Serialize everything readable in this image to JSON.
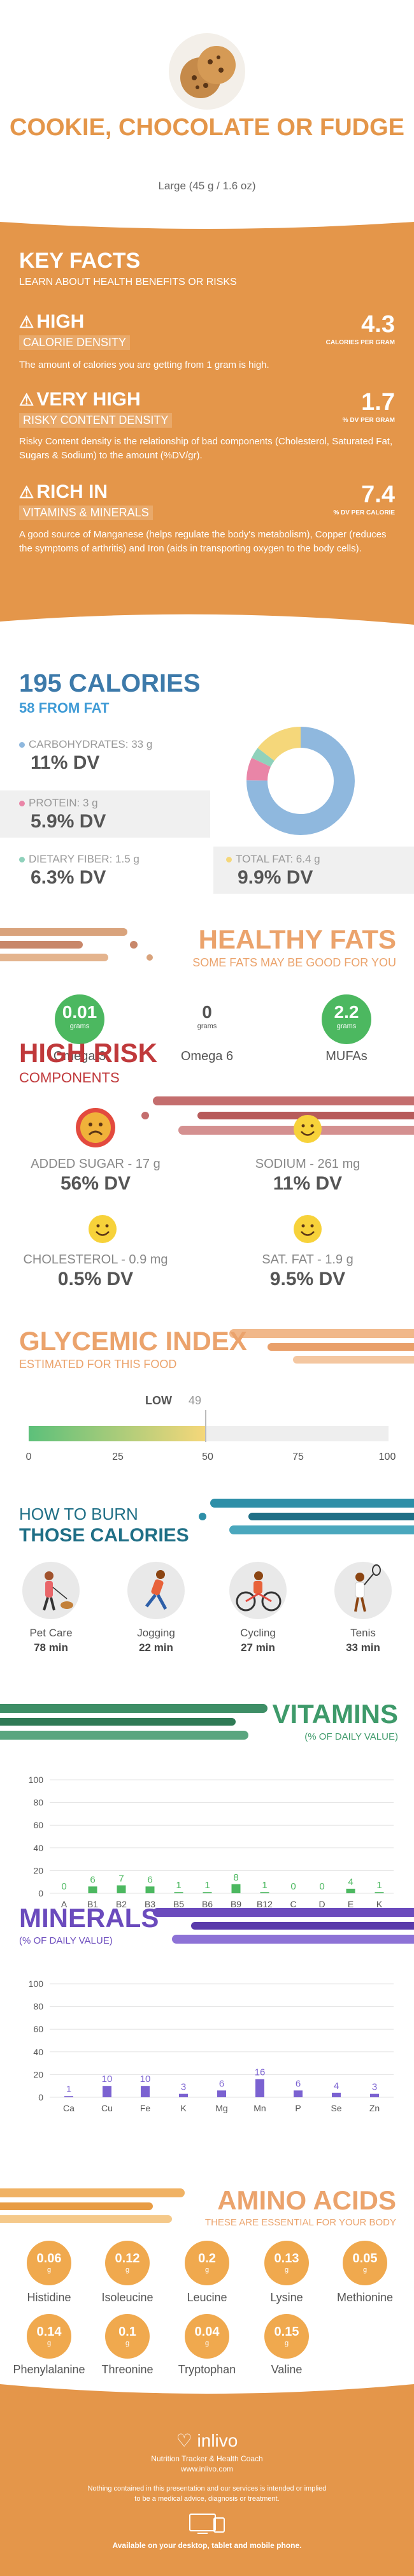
{
  "header": {
    "title": "COOKIE, CHOCOLATE OR FUDGE",
    "serving": "Large (45 g / 1.6 oz)"
  },
  "key_facts": {
    "title": "KEY FACTS",
    "subtitle": "LEARN ABOUT HEALTH BENEFITS OR RISKS",
    "calorie": {
      "level": "HIGH",
      "label": "CALORIE DENSITY",
      "value": "4.3",
      "unit": "CALORIES PER GRAM",
      "desc": "The amount of calories you are getting from 1 gram is high."
    },
    "risky": {
      "level": "VERY HIGH",
      "label": "RISKY CONTENT DENSITY",
      "value": "1.7",
      "unit": "% DV PER GRAM",
      "desc": "Risky Content density is the relationship of bad components (Cholesterol, Saturated Fat, Sugars & Sodium) to the amount (%DV/gr)."
    },
    "vitamins": {
      "level": "RICH IN",
      "label": "VITAMINS & MINERALS",
      "value": "7.4",
      "unit": "% DV PER CALORIE",
      "desc": "A good source of Manganese (helps regulate the body's metabolism), Copper (reduces the symptoms of arthritis) and Iron (aids in transporting oxygen to the body cells)."
    }
  },
  "calories": {
    "title": "195 CALORIES",
    "from_fat": "58 FROM FAT",
    "carbs": {
      "label": "CARBOHYDRATES: 33 g",
      "dv": "11% DV",
      "color": "#8fb8de"
    },
    "protein": {
      "label": "PROTEIN: 3 g",
      "dv": "5.9% DV",
      "color": "#e985a7"
    },
    "fiber": {
      "label": "DIETARY FIBER: 1.5 g",
      "dv": "6.3% DV",
      "color": "#8fd1bb"
    },
    "fat": {
      "label": "TOTAL FAT: 6.4 g",
      "dv": "9.9% DV",
      "color": "#f5d77a"
    }
  },
  "donut": {
    "slices": [
      {
        "name": "carbs",
        "value": 33,
        "color": "#8fb8de"
      },
      {
        "name": "protein",
        "value": 3,
        "color": "#e985a7"
      },
      {
        "name": "fiber",
        "value": 1.5,
        "color": "#8fd1bb"
      },
      {
        "name": "fat",
        "value": 6.4,
        "color": "#f5d77a"
      }
    ]
  },
  "fats": {
    "title": "HEALTHY FATS",
    "subtitle": "SOME FATS MAY BE GOOD FOR YOU",
    "items": [
      {
        "value": "0.01",
        "unit": "grams",
        "name": "Omega 3",
        "color": "#4cb860"
      },
      {
        "value": "0",
        "unit": "grams",
        "name": "Omega 6",
        "color": "#ffffff"
      },
      {
        "value": "2.2",
        "unit": "grams",
        "name": "MUFAs",
        "color": "#4cb860"
      }
    ]
  },
  "risk": {
    "title": "HIGH RISK",
    "subtitle": "COMPONENTS",
    "items": [
      {
        "label": "ADDED SUGAR - 17 g",
        "dv": "56% DV",
        "face": "sad"
      },
      {
        "label": "SODIUM - 261 mg",
        "dv": "11% DV",
        "face": "happy"
      },
      {
        "label": "CHOLESTEROL - 0.9 mg",
        "dv": "0.5% DV",
        "face": "happy"
      },
      {
        "label": "SAT. FAT - 1.9 g",
        "dv": "9.5% DV",
        "face": "happy"
      }
    ]
  },
  "glycemic": {
    "title": "GLYCEMIC INDEX",
    "subtitle": "ESTIMATED FOR THIS FOOD",
    "level": "LOW",
    "value": 49,
    "value_text": "49",
    "ticks": [
      "0",
      "25",
      "50",
      "75",
      "100"
    ]
  },
  "burn": {
    "title_line1": "HOW TO BURN",
    "title_line2": "THOSE CALORIES",
    "activities": [
      {
        "name": "Pet Care",
        "time": "78 min"
      },
      {
        "name": "Jogging",
        "time": "22 min"
      },
      {
        "name": "Cycling",
        "time": "27 min"
      },
      {
        "name": "Tenis",
        "time": "33 min"
      }
    ]
  },
  "vitamins": {
    "title": "VITAMINS",
    "subtitle": "(% OF DAILY VALUE)",
    "chart_data": {
      "type": "bar",
      "categories": [
        "A",
        "B1",
        "B2",
        "B3",
        "B5",
        "B6",
        "B9",
        "B12",
        "C",
        "D",
        "E",
        "K"
      ],
      "values": [
        0,
        6,
        7,
        6,
        1,
        1,
        8,
        1,
        0,
        0,
        4,
        1
      ],
      "labels": [
        "0",
        "6",
        "7",
        "6",
        "1",
        "1",
        "8",
        "1",
        "0",
        "0",
        "4",
        "1"
      ],
      "yticks": [
        "0",
        "20",
        "40",
        "60",
        "80",
        "100"
      ],
      "ylim": [
        0,
        100
      ],
      "color": "#4cb860"
    }
  },
  "minerals": {
    "title": "MINERALS",
    "subtitle": "(% OF DAILY VALUE)",
    "chart_data": {
      "type": "bar",
      "categories": [
        "Ca",
        "Cu",
        "Fe",
        "K",
        "Mg",
        "Mn",
        "P",
        "Se",
        "Zn"
      ],
      "values": [
        1,
        10,
        10,
        3,
        6,
        16,
        6,
        4,
        3
      ],
      "labels": [
        "1",
        "10",
        "10",
        "3",
        "6",
        "16",
        "6",
        "4",
        "3"
      ],
      "yticks": [
        "0",
        "20",
        "40",
        "60",
        "80",
        "100"
      ],
      "ylim": [
        0,
        100
      ],
      "color": "#7b62d1"
    }
  },
  "amino": {
    "title": "AMINO ACIDS",
    "subtitle": "THESE ARE ESSENTIAL FOR YOUR BODY",
    "items": [
      {
        "value": "0.06",
        "unit": "g",
        "name": "Histidine"
      },
      {
        "value": "0.12",
        "unit": "g",
        "name": "Isoleucine"
      },
      {
        "value": "0.2",
        "unit": "g",
        "name": "Leucine"
      },
      {
        "value": "0.13",
        "unit": "g",
        "name": "Lysine"
      },
      {
        "value": "0.05",
        "unit": "g",
        "name": "Methionine"
      },
      {
        "value": "0.14",
        "unit": "g",
        "name": "Phenylalanine"
      },
      {
        "value": "0.1",
        "unit": "g",
        "name": "Threonine"
      },
      {
        "value": "0.04",
        "unit": "g",
        "name": "Tryptophan"
      },
      {
        "value": "0.15",
        "unit": "g",
        "name": "Valine"
      }
    ]
  },
  "footer": {
    "brand": "inlivo",
    "tagline": "Nutrition Tracker & Health Coach",
    "url": "www.inlivo.com",
    "disclaimer1": "Nothing contained in this presentation and our services is intended or implied",
    "disclaimer2": "to be a medical advice, diagnosis or treatment.",
    "available": "Available on your desktop, tablet and mobile phone."
  }
}
